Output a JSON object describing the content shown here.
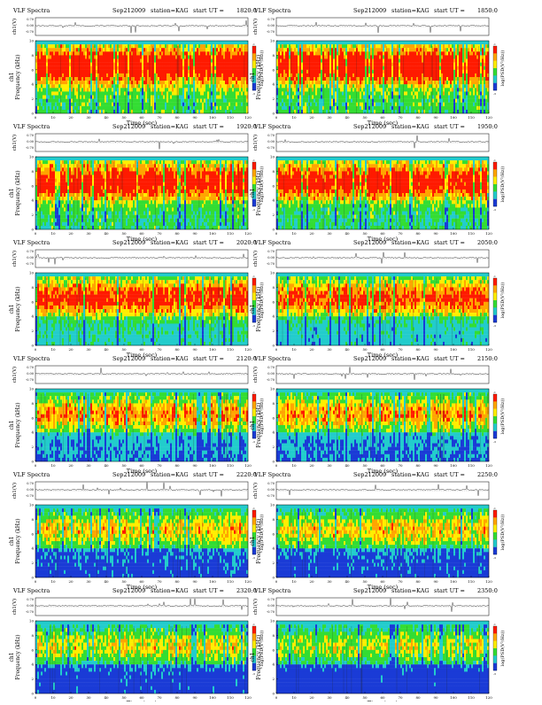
{
  "page": {
    "title": "VLF Spectra"
  },
  "common": {
    "title": "VLF Spectra",
    "date": "Sep212009",
    "station": "station=KAG",
    "start_label": "start  UT =",
    "ts_ylabel": "ch1(V)",
    "ts_ticks": [
      "0.70",
      "0.00",
      "-0.70"
    ],
    "spec_ylabel_channel": "ch1",
    "spec_ylabel": "Frequency (kHz)",
    "freq_ticks": [
      0,
      2,
      4,
      6,
      8,
      10
    ],
    "xlabel": "Time (sec)",
    "time_ticks": [
      0,
      10,
      20,
      30,
      40,
      50,
      60,
      70,
      80,
      90,
      100,
      110,
      120
    ],
    "colorbar_label": "log(PSD(V²/Hz))",
    "colorbar_range": [
      "-3",
      "-1"
    ]
  },
  "colors": {
    "red": "#ff1a00",
    "orange": "#ffa500",
    "yellow": "#ffee00",
    "green": "#33dd33",
    "cyan": "#22cccc",
    "blue": "#1a3bd6",
    "dark": "#222222"
  },
  "chart_data": [
    {
      "type": "heatmap",
      "start_ut": "1820:0",
      "intensity": 0.95,
      "xlim": [
        0,
        120
      ],
      "ylim": [
        0,
        10
      ]
    },
    {
      "type": "heatmap",
      "start_ut": "1850:0",
      "intensity": 0.93,
      "xlim": [
        0,
        120
      ],
      "ylim": [
        0,
        10
      ]
    },
    {
      "type": "heatmap",
      "start_ut": "1920:0",
      "intensity": 0.88,
      "xlim": [
        0,
        120
      ],
      "ylim": [
        0,
        10
      ]
    },
    {
      "type": "heatmap",
      "start_ut": "1950:0",
      "intensity": 0.87,
      "xlim": [
        0,
        120
      ],
      "ylim": [
        0,
        10
      ]
    },
    {
      "type": "heatmap",
      "start_ut": "2020:0",
      "intensity": 0.78,
      "xlim": [
        0,
        120
      ],
      "ylim": [
        0,
        10
      ]
    },
    {
      "type": "heatmap",
      "start_ut": "2050:0",
      "intensity": 0.72,
      "xlim": [
        0,
        120
      ],
      "ylim": [
        0,
        10
      ]
    },
    {
      "type": "heatmap",
      "start_ut": "2120:0",
      "intensity": 0.6,
      "xlim": [
        0,
        120
      ],
      "ylim": [
        0,
        10
      ]
    },
    {
      "type": "heatmap",
      "start_ut": "2150:0",
      "intensity": 0.58,
      "xlim": [
        0,
        120
      ],
      "ylim": [
        0,
        10
      ]
    },
    {
      "type": "heatmap",
      "start_ut": "2220:0",
      "intensity": 0.5,
      "xlim": [
        0,
        120
      ],
      "ylim": [
        0,
        10
      ]
    },
    {
      "type": "heatmap",
      "start_ut": "2250:0",
      "intensity": 0.48,
      "xlim": [
        0,
        120
      ],
      "ylim": [
        0,
        10
      ]
    },
    {
      "type": "heatmap",
      "start_ut": "2320:0",
      "intensity": 0.45,
      "xlim": [
        0,
        120
      ],
      "ylim": [
        0,
        10
      ]
    },
    {
      "type": "heatmap",
      "start_ut": "2350:0",
      "intensity": 0.4,
      "xlim": [
        0,
        120
      ],
      "ylim": [
        0,
        10
      ]
    }
  ]
}
